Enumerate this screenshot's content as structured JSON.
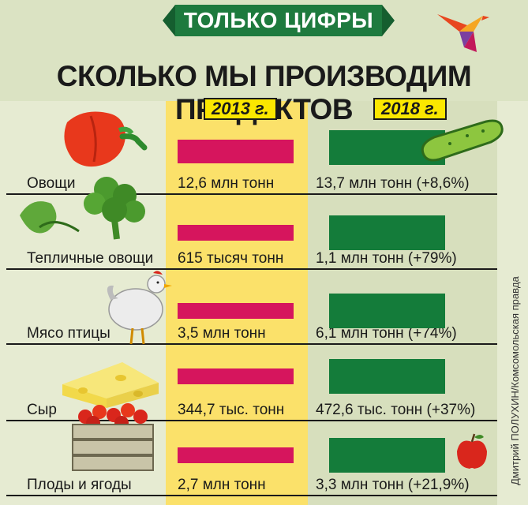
{
  "header": {
    "badge": "ТОЛЬКО ЦИФРЫ",
    "title": "СКОЛЬКО МЫ ПРОИЗВОДИМ ПРОДУКТОВ"
  },
  "credit": "Дмитрий ПОЛУХИН/Комсомольская правда",
  "colors": {
    "bar_2013": "#d6155d",
    "bar_2018": "#147c3a",
    "column_2013": "#fbe16a",
    "column_2018": "#d7dfbd",
    "badge": "#1e7a3e"
  },
  "chart_data": {
    "type": "bar",
    "series_labels": [
      "2013 г.",
      "2018 г."
    ],
    "categories": [
      "Овощи",
      "Тепличные овощи",
      "Мясо птицы",
      "Сыр",
      "Плоды и ягоды"
    ],
    "series": [
      {
        "name": "2013 г.",
        "values": [
          12.6,
          0.615,
          3.5,
          0.3447,
          2.7
        ],
        "labels": [
          "12,6 млн тонн",
          "615 тысяч тонн",
          "3,5 млн тонн",
          "344,7 тыс. тонн",
          "2,7 млн тонн"
        ]
      },
      {
        "name": "2018 г.",
        "values": [
          13.7,
          1.1,
          6.1,
          0.4726,
          3.3
        ],
        "labels": [
          "13,7 млн тонн (+8,6%)",
          "1,1 млн тонн (+79%)",
          "6,1 млн тонн (+74%)",
          "472,6 тыс. тонн (+37%)",
          "3,3 млн тонн (+21,9%)"
        ]
      }
    ],
    "units": "млн тонн"
  },
  "icons": [
    "bird-logo-icon",
    "pepper-icon",
    "cucumber-icon",
    "greens-icon",
    "chicken-icon",
    "cheese-icon",
    "fruit-crate-icon",
    "apple-icon"
  ]
}
